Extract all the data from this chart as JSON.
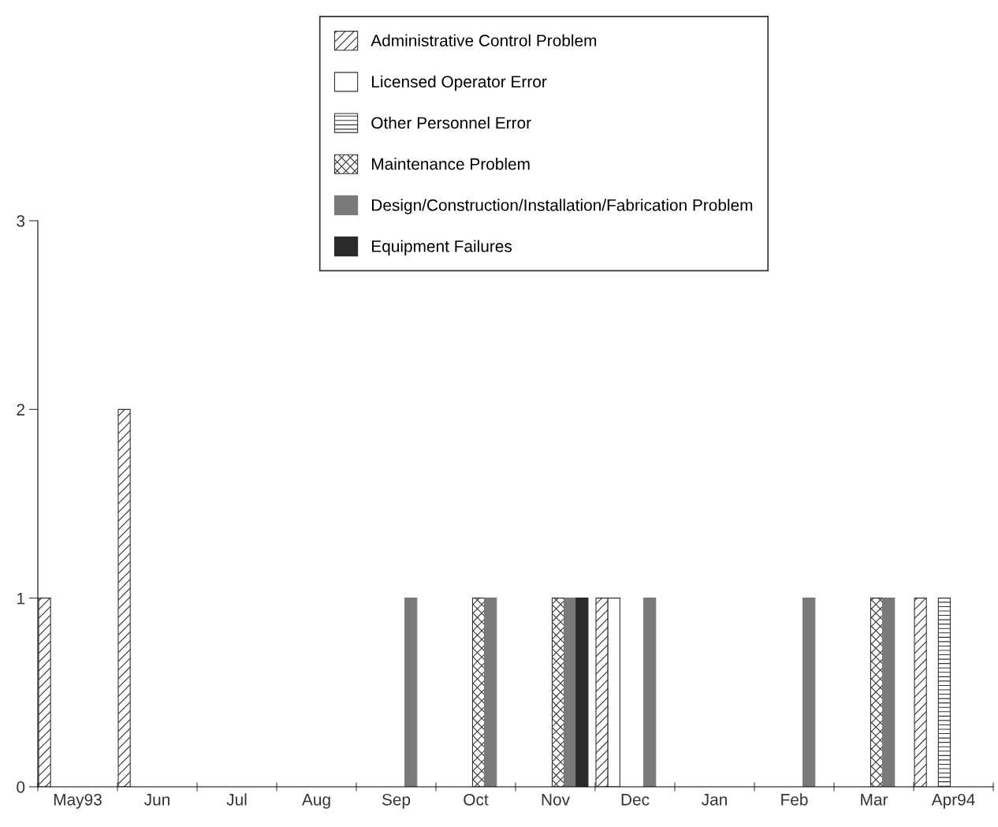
{
  "chart_data": {
    "type": "bar",
    "categories": [
      "May93",
      "Jun",
      "Jul",
      "Aug",
      "Sep",
      "Oct",
      "Nov",
      "Dec",
      "Jan",
      "Feb",
      "Mar",
      "Apr94"
    ],
    "series": [
      {
        "name": "Administrative Control Problem",
        "color": "#333333",
        "values": [
          1,
          2,
          null,
          null,
          null,
          null,
          null,
          1,
          null,
          null,
          null,
          1
        ]
      },
      {
        "name": "Licensed Operator Error",
        "color": "#333333",
        "values": [
          null,
          null,
          null,
          null,
          null,
          null,
          null,
          1,
          null,
          null,
          null,
          null
        ]
      },
      {
        "name": "Other Personnel Error",
        "color": "#333333",
        "values": [
          null,
          null,
          null,
          null,
          null,
          null,
          null,
          null,
          null,
          null,
          null,
          1
        ]
      },
      {
        "name": "Maintenance Problem",
        "color": "#333333",
        "values": [
          null,
          null,
          null,
          null,
          null,
          1,
          1,
          null,
          null,
          null,
          1,
          null
        ]
      },
      {
        "name": "Design/Construction/Installation/Fabrication Problem",
        "color": "#7a7a7a",
        "values": [
          null,
          null,
          null,
          null,
          1,
          1,
          1,
          1,
          null,
          1,
          1,
          null
        ]
      },
      {
        "name": "Equipment Failures",
        "color": "#2a2a2a",
        "values": [
          null,
          null,
          null,
          null,
          null,
          null,
          1,
          null,
          null,
          null,
          null,
          null
        ]
      }
    ],
    "ylim": [
      0,
      3
    ],
    "yticks": [
      0,
      1,
      2,
      3
    ],
    "grid": false,
    "legend": "top"
  }
}
